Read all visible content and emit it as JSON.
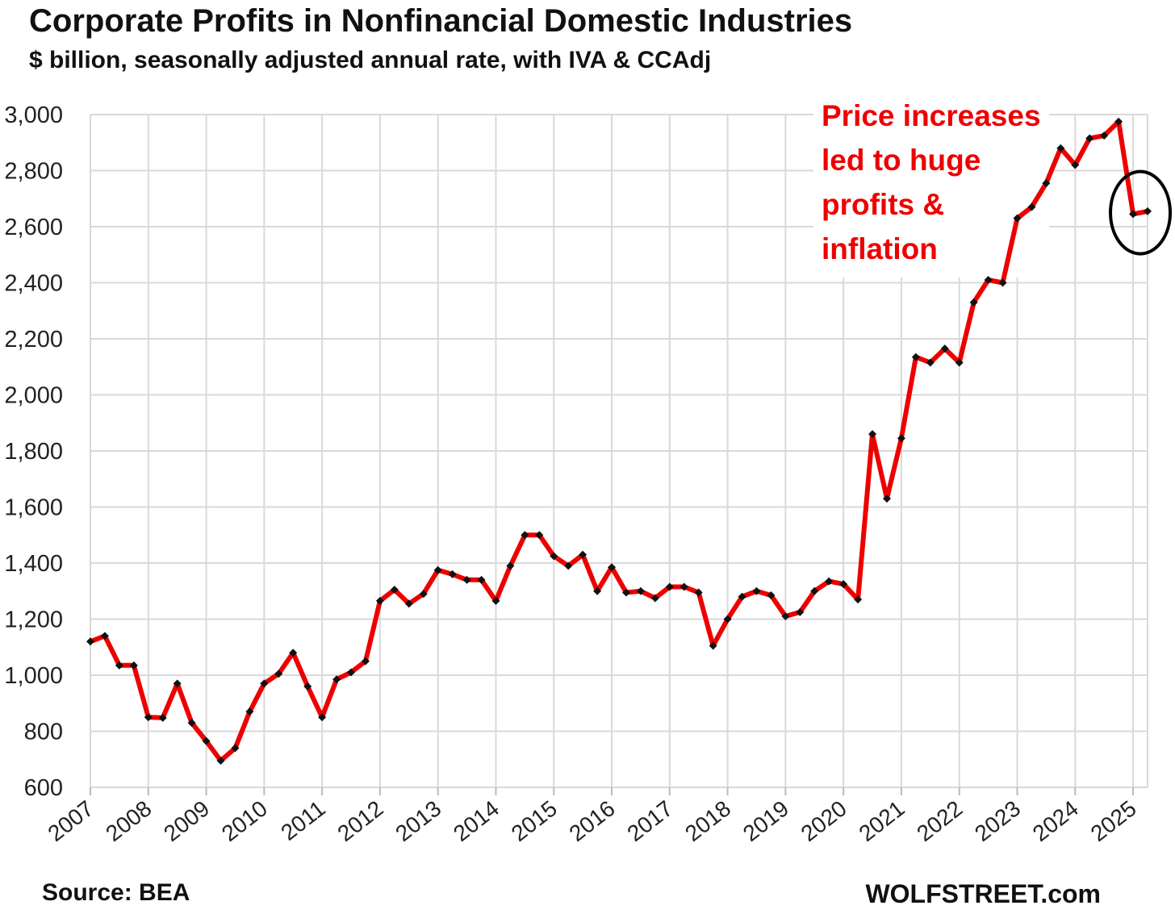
{
  "header": {
    "title": "Corporate Profits in Nonfinancial Domestic Industries",
    "subtitle": "$ billion, seasonally adjusted annual rate, with IVA & CCAdj"
  },
  "footer": {
    "source": "Source: BEA",
    "credit": "WOLFSTREET.com"
  },
  "colors": {
    "line": "#ee0000",
    "marker": "#111111",
    "grid": "#d9d9d9",
    "annotation": "#ee0000",
    "circle": "#000000"
  },
  "chart_data": {
    "type": "line",
    "title": "Corporate Profits in Nonfinancial Domestic Industries",
    "subtitle": "$ billion, seasonally adjusted annual rate, with IVA & CCAdj",
    "xlabel": "",
    "ylabel": "",
    "ylim": [
      600,
      3000
    ],
    "xlim": [
      2007,
      2025.25
    ],
    "ytick_values": [
      600,
      800,
      1000,
      1200,
      1400,
      1600,
      1800,
      2000,
      2200,
      2400,
      2600,
      2800,
      3000
    ],
    "ytick_labels": [
      "600",
      "800",
      "1,000",
      "1,200",
      "1,400",
      "1,600",
      "1,800",
      "2,000",
      "2,200",
      "2,400",
      "2,600",
      "2,800",
      "3,000"
    ],
    "xtick_labels": [
      "2007",
      "2008",
      "2009",
      "2010",
      "2011",
      "2012",
      "2013",
      "2014",
      "2015",
      "2016",
      "2017",
      "2018",
      "2019",
      "2020",
      "2021",
      "2022",
      "2023",
      "2024",
      "2025"
    ],
    "grid": true,
    "series": [
      {
        "x": [
          2007.0,
          2007.25,
          2007.5,
          2007.75,
          2008.0,
          2008.25,
          2008.5,
          2008.75,
          2009.0,
          2009.25,
          2009.5,
          2009.75,
          2010.0,
          2010.25,
          2010.5,
          2010.75,
          2011.0,
          2011.25,
          2011.5,
          2011.75,
          2012.0,
          2012.25,
          2012.5,
          2012.75,
          2013.0,
          2013.25,
          2013.5,
          2013.75,
          2014.0,
          2014.25,
          2014.5,
          2014.75,
          2015.0,
          2015.25,
          2015.5,
          2015.75,
          2016.0,
          2016.25,
          2016.5,
          2016.75,
          2017.0,
          2017.25,
          2017.5,
          2017.75,
          2018.0,
          2018.25,
          2018.5,
          2018.75,
          2019.0,
          2019.25,
          2019.5,
          2019.75,
          2020.0,
          2020.25,
          2020.5,
          2020.75,
          2021.0,
          2021.25,
          2021.5,
          2021.75,
          2022.0,
          2022.25,
          2022.5,
          2022.75,
          2023.0,
          2023.25,
          2023.5,
          2023.75,
          2024.0,
          2024.25,
          2024.5,
          2024.75,
          2025.0,
          2025.25
        ],
        "y": [
          1120,
          1140,
          1035,
          1035,
          850,
          848,
          970,
          830,
          765,
          695,
          740,
          870,
          970,
          1005,
          1080,
          960,
          850,
          985,
          1010,
          1050,
          1265,
          1305,
          1255,
          1290,
          1375,
          1360,
          1340,
          1340,
          1265,
          1390,
          1500,
          1500,
          1425,
          1390,
          1430,
          1300,
          1385,
          1295,
          1300,
          1275,
          1315,
          1315,
          1295,
          1105,
          1200,
          1280,
          1300,
          1285,
          1210,
          1225,
          1300,
          1335,
          1325,
          1270,
          1860,
          1630,
          1845,
          2135,
          2115,
          2165,
          2115,
          2330,
          2410,
          2400,
          2630,
          2670,
          2755,
          2880,
          2820,
          2915,
          2925,
          2975,
          2645,
          2655
        ]
      }
    ],
    "annotations": [
      {
        "text": [
          "Price increases",
          "led to huge",
          "profits &",
          "inflation"
        ],
        "color": "#ee0000"
      }
    ]
  }
}
